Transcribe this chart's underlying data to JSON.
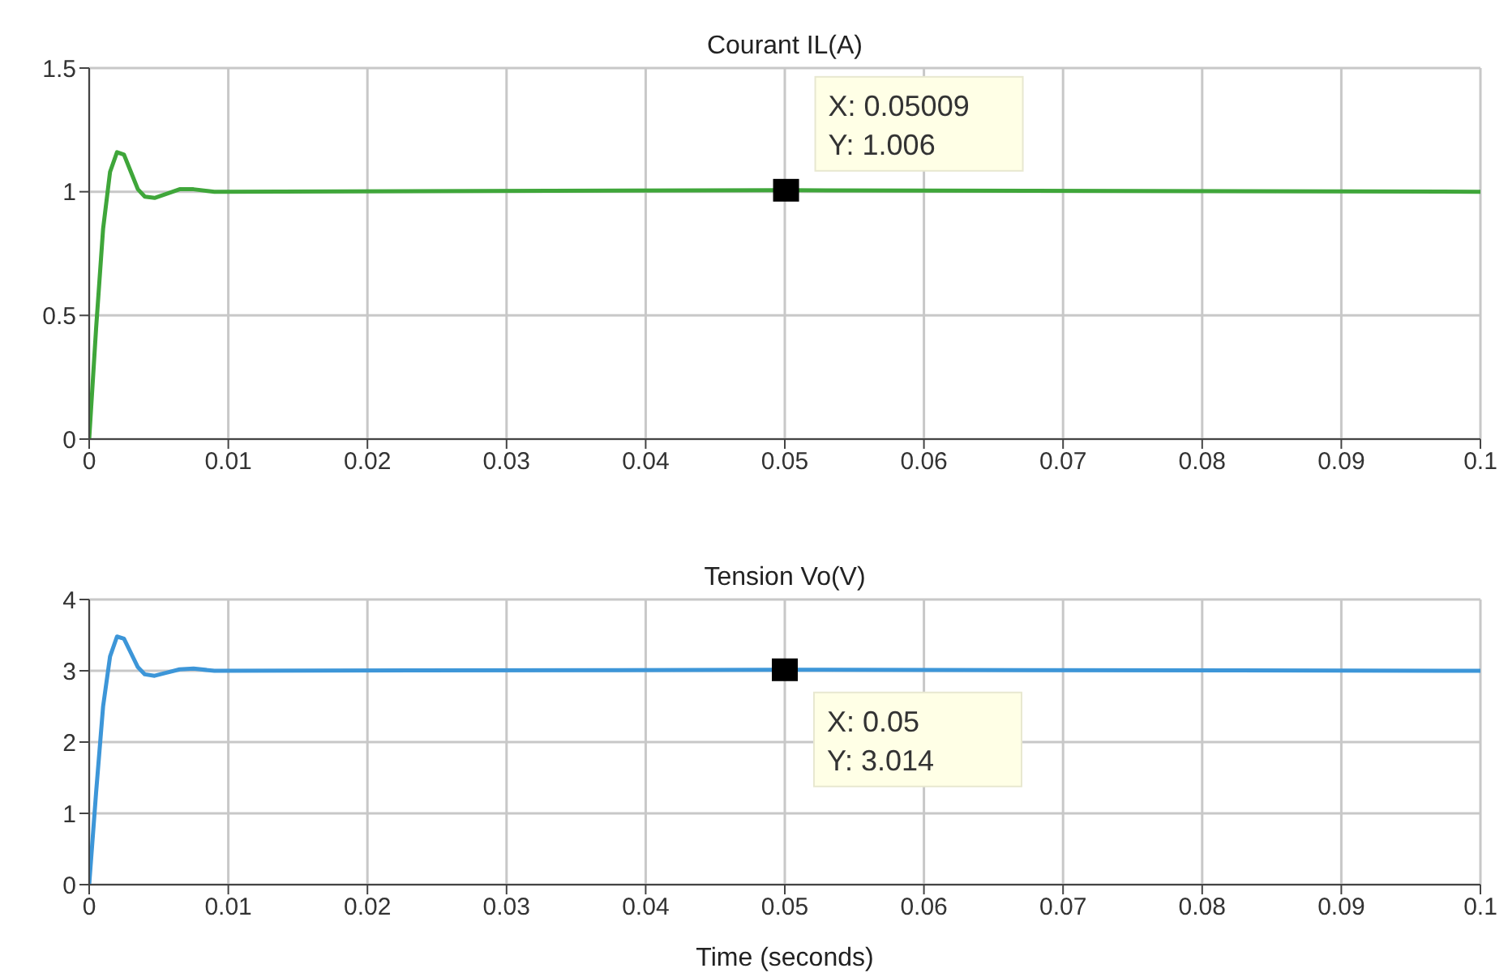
{
  "chart_data": [
    {
      "type": "line",
      "title": "Courant IL(A)",
      "x": [
        0,
        0.0005,
        0.001,
        0.0015,
        0.002,
        0.0025,
        0.003,
        0.0035,
        0.004,
        0.0047,
        0.0055,
        0.0065,
        0.0075,
        0.009,
        0.05009,
        0.1
      ],
      "series": [
        {
          "color": "#3fa63a",
          "values": [
            0,
            0.45,
            0.85,
            1.08,
            1.16,
            1.15,
            1.08,
            1.01,
            0.98,
            0.975,
            0.99,
            1.01,
            1.01,
            1.0,
            1.006,
            1.0
          ]
        }
      ],
      "xlim": [
        0,
        0.1
      ],
      "xticks": [
        0,
        0.01,
        0.02,
        0.03,
        0.04,
        0.05,
        0.06,
        0.07,
        0.08,
        0.09,
        0.1
      ],
      "ylim": [
        0,
        1.5
      ],
      "yticks": [
        0,
        0.5,
        1,
        1.5
      ],
      "grid": true,
      "annotations": [
        {
          "text": "X: 0.05009\nY: 1.006",
          "x": 0.05009,
          "y": 1.006
        }
      ]
    },
    {
      "type": "line",
      "title": "Tension Vo(V)",
      "xlabel": "Time (seconds)",
      "x": [
        0,
        0.0005,
        0.001,
        0.0015,
        0.002,
        0.0025,
        0.003,
        0.0035,
        0.004,
        0.0047,
        0.0055,
        0.0065,
        0.0075,
        0.009,
        0.05,
        0.1
      ],
      "series": [
        {
          "color": "#3d96d8",
          "values": [
            0,
            1.3,
            2.5,
            3.2,
            3.48,
            3.45,
            3.25,
            3.05,
            2.95,
            2.93,
            2.97,
            3.02,
            3.03,
            3.0,
            3.014,
            3.0
          ]
        }
      ],
      "xlim": [
        0,
        0.1
      ],
      "xticks": [
        0,
        0.01,
        0.02,
        0.03,
        0.04,
        0.05,
        0.06,
        0.07,
        0.08,
        0.09,
        0.1
      ],
      "ylim": [
        0,
        4
      ],
      "yticks": [
        0,
        1,
        2,
        3,
        4
      ],
      "grid": true,
      "annotations": [
        {
          "text": "X: 0.05\nY: 3.014",
          "x": 0.05,
          "y": 3.014
        }
      ]
    }
  ]
}
